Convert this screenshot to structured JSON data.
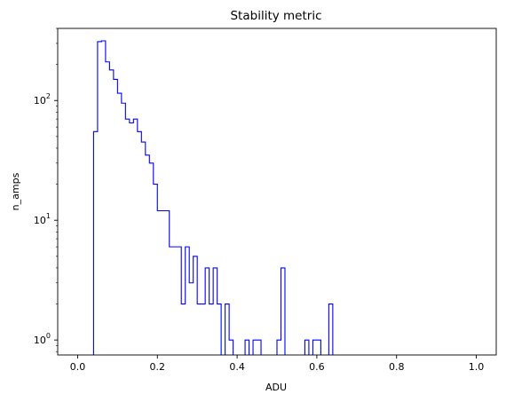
{
  "chart_data": {
    "type": "histogram",
    "title": "Stability metric",
    "xlabel": "ADU",
    "ylabel": "n_amps",
    "xlim": [
      -0.05,
      1.05
    ],
    "ylim": [
      0.75,
      400
    ],
    "yscale": "log",
    "grid": false,
    "series_color": "#0000ff",
    "x_ticks": [
      {
        "value": 0.0,
        "label": "0.0"
      },
      {
        "value": 0.2,
        "label": "0.2"
      },
      {
        "value": 0.4,
        "label": "0.4"
      },
      {
        "value": 0.6,
        "label": "0.6"
      },
      {
        "value": 0.8,
        "label": "0.8"
      },
      {
        "value": 1.0,
        "label": "1.0"
      }
    ],
    "y_ticks": [
      {
        "value": 1,
        "base": "10",
        "exp": "0"
      },
      {
        "value": 10,
        "base": "10",
        "exp": "1"
      },
      {
        "value": 100,
        "base": "10",
        "exp": "2"
      }
    ],
    "bins": {
      "start": 0.0,
      "width": 0.01,
      "counts": [
        0,
        0,
        0,
        0,
        55,
        310,
        315,
        210,
        180,
        150,
        115,
        95,
        70,
        65,
        70,
        55,
        45,
        35,
        30,
        20,
        12,
        12,
        12,
        6,
        6,
        6,
        2,
        6,
        3,
        5,
        2,
        2,
        4,
        2,
        4,
        2,
        0,
        2,
        1,
        0,
        0,
        0,
        1,
        0,
        1,
        1,
        0,
        0,
        0,
        0,
        1,
        4,
        0,
        0,
        0,
        0,
        0,
        1,
        0,
        1,
        1,
        0,
        0,
        2,
        0,
        0,
        0,
        0,
        0,
        0,
        0,
        0,
        0,
        0,
        0,
        0,
        0,
        0,
        0,
        0,
        0,
        0,
        0,
        0,
        0,
        0,
        0,
        0,
        0,
        0,
        0,
        0,
        0,
        0,
        0,
        0,
        0,
        0,
        0,
        0,
        0
      ]
    }
  }
}
